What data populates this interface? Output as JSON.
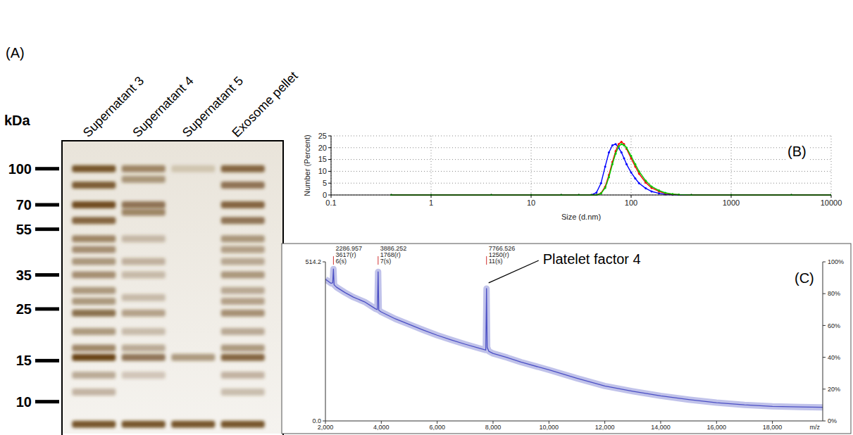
{
  "gel": {
    "letter": "(A)",
    "axis_label": "kDa",
    "log": true,
    "ylim": [
      7.5,
      130
    ],
    "yticks": [
      100,
      70,
      55,
      35,
      25,
      15,
      10
    ],
    "lanes": [
      {
        "name": "Supernatant 3",
        "bands": [
          {
            "kda": 100,
            "intensity": 0.9
          },
          {
            "kda": 85,
            "intensity": 0.85
          },
          {
            "kda": 70,
            "intensity": 0.95
          },
          {
            "kda": 60,
            "intensity": 0.8
          },
          {
            "kda": 50,
            "intensity": 0.6
          },
          {
            "kda": 45,
            "intensity": 0.55
          },
          {
            "kda": 40,
            "intensity": 0.5
          },
          {
            "kda": 35,
            "intensity": 0.55
          },
          {
            "kda": 30,
            "intensity": 0.5
          },
          {
            "kda": 27,
            "intensity": 0.5
          },
          {
            "kda": 24,
            "intensity": 0.75
          },
          {
            "kda": 20,
            "intensity": 0.5
          },
          {
            "kda": 17,
            "intensity": 0.6
          },
          {
            "kda": 15.5,
            "intensity": 1
          },
          {
            "kda": 13,
            "intensity": 0.4
          },
          {
            "kda": 11,
            "intensity": 0.35
          },
          {
            "kda": 8,
            "intensity": 0.9
          }
        ]
      },
      {
        "name": "Supernatant 4",
        "bands": [
          {
            "kda": 100,
            "intensity": 0.6
          },
          {
            "kda": 90,
            "intensity": 0.5
          },
          {
            "kda": 70,
            "intensity": 0.7
          },
          {
            "kda": 65,
            "intensity": 0.6
          },
          {
            "kda": 50,
            "intensity": 0.3
          },
          {
            "kda": 40,
            "intensity": 0.35
          },
          {
            "kda": 35,
            "intensity": 0.3
          },
          {
            "kda": 28,
            "intensity": 0.3
          },
          {
            "kda": 24,
            "intensity": 0.45
          },
          {
            "kda": 20,
            "intensity": 0.3
          },
          {
            "kda": 17,
            "intensity": 0.4
          },
          {
            "kda": 15.5,
            "intensity": 0.7
          },
          {
            "kda": 13,
            "intensity": 0.25
          },
          {
            "kda": 8,
            "intensity": 0.9
          }
        ]
      },
      {
        "name": "Supernatant 5",
        "bands": [
          {
            "kda": 100,
            "intensity": 0.2
          },
          {
            "kda": 15.5,
            "intensity": 0.5
          },
          {
            "kda": 8,
            "intensity": 0.9
          }
        ]
      },
      {
        "name": "Exosome pellet",
        "bands": [
          {
            "kda": 100,
            "intensity": 0.8
          },
          {
            "kda": 85,
            "intensity": 0.7
          },
          {
            "kda": 70,
            "intensity": 0.8
          },
          {
            "kda": 60,
            "intensity": 0.7
          },
          {
            "kda": 50,
            "intensity": 0.5
          },
          {
            "kda": 45,
            "intensity": 0.45
          },
          {
            "kda": 40,
            "intensity": 0.4
          },
          {
            "kda": 35,
            "intensity": 0.5
          },
          {
            "kda": 30,
            "intensity": 0.4
          },
          {
            "kda": 27,
            "intensity": 0.45
          },
          {
            "kda": 24,
            "intensity": 0.55
          },
          {
            "kda": 20,
            "intensity": 0.4
          },
          {
            "kda": 17,
            "intensity": 0.5
          },
          {
            "kda": 15.5,
            "intensity": 0.8
          },
          {
            "kda": 13,
            "intensity": 0.35
          },
          {
            "kda": 11,
            "intensity": 0.3
          },
          {
            "kda": 8,
            "intensity": 0.9
          }
        ]
      }
    ]
  },
  "chart_data": [
    {
      "type": "line",
      "panel": "(B)",
      "xlabel": "Size (d.nm)",
      "ylabel": "Number (Percent)",
      "log": "x",
      "grid": true,
      "marker": "circle",
      "x": [
        0.4,
        1,
        4,
        10,
        20,
        30,
        40,
        45,
        50,
        55,
        60,
        65,
        70,
        75,
        80,
        85,
        90,
        100,
        110,
        120,
        140,
        160,
        190,
        220,
        260,
        300,
        400,
        1000,
        4000,
        10000
      ],
      "series": [
        {
          "color": "#0000ff",
          "values": [
            0,
            0,
            0,
            0,
            0,
            0,
            0,
            1,
            5,
            12,
            18,
            21,
            21.5,
            20,
            18,
            15.5,
            13,
            9.5,
            7,
            5,
            2.8,
            1.5,
            0.7,
            0.3,
            0.1,
            0,
            0,
            0,
            0,
            0
          ]
        },
        {
          "color": "#ff0000",
          "values": [
            0,
            0,
            0,
            0,
            0,
            0,
            0,
            0,
            0.8,
            3.5,
            8.5,
            14,
            18.5,
            21.5,
            22.5,
            21.5,
            19.5,
            15.5,
            12,
            9,
            5.2,
            3,
            1.5,
            0.7,
            0.3,
            0.1,
            0,
            0,
            0,
            0
          ]
        },
        {
          "color": "#00cc00",
          "values": [
            0,
            0,
            0,
            0,
            0,
            0,
            0,
            0,
            0.6,
            3,
            7.5,
            13,
            17.5,
            20.5,
            21.5,
            21,
            20,
            16.5,
            13,
            10,
            6,
            3.6,
            1.9,
            0.9,
            0.4,
            0.15,
            0,
            0,
            0,
            0
          ]
        }
      ],
      "xlim": [
        0.1,
        10000
      ],
      "xticks": [
        0.1,
        1,
        10,
        100,
        1000,
        10000
      ],
      "ylim": [
        0,
        25
      ],
      "yticks": [
        0,
        5,
        10,
        15,
        20,
        25
      ]
    },
    {
      "type": "line",
      "panel": "(C)",
      "xlabel": "m/z",
      "x": [
        2000,
        2200,
        2260,
        2286.957,
        2310,
        2400,
        2700,
        3000,
        3400,
        3800,
        3860,
        3886.252,
        3910,
        4000,
        4500,
        5000,
        5500,
        6000,
        6500,
        7000,
        7500,
        7700,
        7740,
        7766.526,
        7790,
        7850,
        8000,
        8500,
        9000,
        10000,
        11000,
        12000,
        13000,
        14000,
        15000,
        16000,
        17000,
        18000,
        19000,
        19800
      ],
      "series": [
        {
          "color": "#4b4fc4",
          "values": [
            458,
            445,
            446,
            491,
            440,
            432,
            415,
            400,
            385,
            362,
            360,
            482,
            358,
            352,
            330,
            312,
            294,
            277,
            262,
            248,
            235,
            230,
            229,
            428,
            238,
            225,
            218,
            205,
            190,
            165,
            138,
            113,
            96,
            81,
            69,
            59,
            52,
            47,
            45,
            44
          ]
        }
      ],
      "xlim": [
        2000,
        19800
      ],
      "xticks": [
        {
          "value": 2000,
          "label": "2,000"
        },
        {
          "value": 4000,
          "label": "4,000"
        },
        {
          "value": 6000,
          "label": "6,000"
        },
        {
          "value": 8000,
          "label": "8,000"
        },
        {
          "value": 10000,
          "label": "10,000"
        },
        {
          "value": 12000,
          "label": "12,000"
        },
        {
          "value": 14000,
          "label": "14,000"
        },
        {
          "value": 16000,
          "label": "16,000"
        },
        {
          "value": 18000,
          "label": "18,000"
        }
      ],
      "ylim": [
        0,
        514.2
      ],
      "yticks": [
        {
          "value": 0,
          "label": "0.0"
        },
        514.2
      ],
      "y2lim": [
        0,
        100
      ],
      "y2ticks": [
        {
          "value": 0,
          "label": "0%"
        },
        {
          "value": 20,
          "label": "20%"
        },
        {
          "value": 40,
          "label": "40%"
        },
        {
          "value": 60,
          "label": "60%"
        },
        {
          "value": 80,
          "label": "80%"
        },
        {
          "value": 100,
          "label": "100%"
        }
      ],
      "peaks": [
        {
          "mz": 2286.957,
          "lines": [
            "3617(r)",
            "6(s)"
          ]
        },
        {
          "mz": 3886.252,
          "lines": [
            "1768(r)",
            "7(s)"
          ]
        },
        {
          "mz": 7766.526,
          "lines": [
            "1250(r)",
            "11(s)"
          ]
        }
      ],
      "annotations": [
        {
          "text": "Platelet factor 4",
          "x": 7766.526
        }
      ]
    }
  ]
}
